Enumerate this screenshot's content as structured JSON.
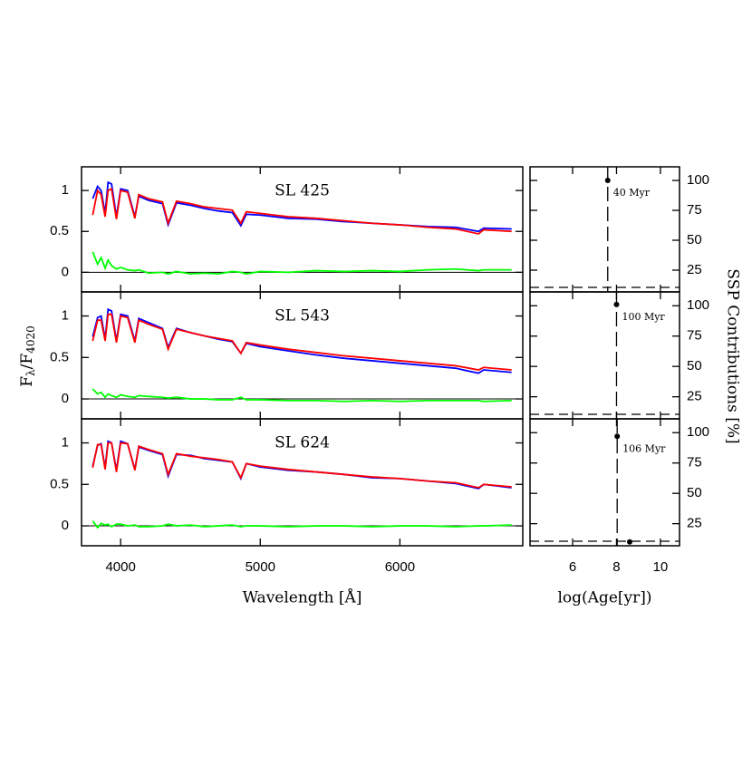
{
  "chart_data": [
    {
      "type": "line",
      "title": "SL 425",
      "xlim": [
        3720,
        6880
      ],
      "ylim": [
        -0.24,
        1.29
      ],
      "xticks": [
        4000,
        5000,
        6000
      ],
      "yticks": [
        0,
        0.5,
        1
      ],
      "x": [
        3800,
        3835,
        3860,
        3889,
        3910,
        3935,
        3970,
        4000,
        4050,
        4102,
        4130,
        4200,
        4300,
        4340,
        4400,
        4500,
        4600,
        4700,
        4800,
        4861,
        4900,
        5000,
        5200,
        5400,
        5600,
        5800,
        6000,
        6200,
        6400,
        6563,
        6600,
        6800
      ],
      "series": [
        {
          "color": "#0000ff",
          "values": [
            0.9,
            1.05,
            1.0,
            0.72,
            1.1,
            1.08,
            0.68,
            1.02,
            1.0,
            0.68,
            0.93,
            0.88,
            0.84,
            0.58,
            0.85,
            0.82,
            0.78,
            0.75,
            0.73,
            0.57,
            0.71,
            0.7,
            0.66,
            0.65,
            0.62,
            0.6,
            0.58,
            0.56,
            0.55,
            0.5,
            0.54,
            0.53
          ]
        },
        {
          "color": "#ff0000",
          "values": [
            0.7,
            1.0,
            0.95,
            0.68,
            1.0,
            1.02,
            0.65,
            1.0,
            0.98,
            0.66,
            0.95,
            0.9,
            0.86,
            0.6,
            0.87,
            0.84,
            0.8,
            0.78,
            0.76,
            0.6,
            0.74,
            0.72,
            0.68,
            0.66,
            0.63,
            0.6,
            0.58,
            0.55,
            0.53,
            0.47,
            0.52,
            0.5
          ]
        },
        {
          "color": "#00ff00",
          "values": [
            0.25,
            0.1,
            0.18,
            0.05,
            0.15,
            0.08,
            0.04,
            0.06,
            0.03,
            0.02,
            0.03,
            -0.01,
            0,
            -0.02,
            0.01,
            -0.02,
            -0.01,
            -0.02,
            0.01,
            0,
            -0.02,
            0.01,
            0,
            0.02,
            0.01,
            0.02,
            0.01,
            0.03,
            0.04,
            0.02,
            0.03,
            0.03
          ]
        }
      ]
    },
    {
      "type": "line",
      "title": "SL 543",
      "xlim": [
        3720,
        6880
      ],
      "ylim": [
        -0.24,
        1.29
      ],
      "xticks": [
        4000,
        5000,
        6000
      ],
      "yticks": [
        0,
        0.5,
        1
      ],
      "ylabel": [
        "F",
        "λ",
        "/F",
        "4020"
      ],
      "x": [
        3800,
        3835,
        3860,
        3889,
        3910,
        3935,
        3970,
        4000,
        4050,
        4102,
        4130,
        4200,
        4300,
        4340,
        4400,
        4500,
        4600,
        4700,
        4800,
        4861,
        4900,
        5000,
        5200,
        5400,
        5600,
        5800,
        6000,
        6200,
        6400,
        6563,
        6600,
        6800
      ],
      "series": [
        {
          "color": "#0000ff",
          "values": [
            0.75,
            0.98,
            1.0,
            0.72,
            1.08,
            1.06,
            0.7,
            1.02,
            1.0,
            0.7,
            0.97,
            0.92,
            0.85,
            0.62,
            0.85,
            0.8,
            0.76,
            0.72,
            0.69,
            0.55,
            0.67,
            0.63,
            0.58,
            0.53,
            0.49,
            0.46,
            0.43,
            0.4,
            0.37,
            0.31,
            0.35,
            0.32
          ]
        },
        {
          "color": "#ff0000",
          "values": [
            0.7,
            0.95,
            0.95,
            0.7,
            1.02,
            1.02,
            0.68,
            1.0,
            0.98,
            0.68,
            0.95,
            0.9,
            0.84,
            0.6,
            0.84,
            0.8,
            0.76,
            0.73,
            0.7,
            0.55,
            0.68,
            0.65,
            0.6,
            0.56,
            0.52,
            0.49,
            0.46,
            0.43,
            0.4,
            0.35,
            0.38,
            0.35
          ]
        },
        {
          "color": "#00ff00",
          "values": [
            0.12,
            0.06,
            0.08,
            0.02,
            0.06,
            0.04,
            0.02,
            0.05,
            0.03,
            0.02,
            0.04,
            0.03,
            0.02,
            0.01,
            0.02,
            0,
            0,
            -0.01,
            -0.01,
            0.02,
            -0.01,
            -0.01,
            -0.02,
            -0.02,
            -0.03,
            -0.02,
            -0.03,
            -0.02,
            -0.02,
            -0.02,
            -0.03,
            -0.02
          ]
        }
      ]
    },
    {
      "type": "line",
      "title": "SL 624",
      "xlim": [
        3720,
        6880
      ],
      "ylim": [
        -0.24,
        1.29
      ],
      "xticks": [
        4000,
        5000,
        6000
      ],
      "yticks": [
        0,
        0.5,
        1
      ],
      "xlabel": "Wavelength [Å]",
      "x": [
        3800,
        3835,
        3860,
        3889,
        3910,
        3935,
        3970,
        4000,
        4050,
        4102,
        4130,
        4200,
        4300,
        4340,
        4400,
        4500,
        4600,
        4700,
        4800,
        4861,
        4900,
        5000,
        5200,
        5400,
        5600,
        5800,
        6000,
        6200,
        6400,
        6563,
        6600,
        6800
      ],
      "series": [
        {
          "color": "#0000ff",
          "values": [
            0.72,
            0.97,
            0.99,
            0.7,
            1.02,
            1.0,
            0.67,
            1.02,
            0.99,
            0.68,
            0.95,
            0.91,
            0.86,
            0.6,
            0.86,
            0.85,
            0.81,
            0.79,
            0.77,
            0.57,
            0.75,
            0.71,
            0.67,
            0.65,
            0.62,
            0.58,
            0.57,
            0.54,
            0.51,
            0.45,
            0.5,
            0.46
          ]
        },
        {
          "color": "#ff0000",
          "values": [
            0.7,
            0.98,
            0.98,
            0.68,
            1.0,
            1.0,
            0.65,
            1.0,
            0.99,
            0.67,
            0.96,
            0.92,
            0.87,
            0.62,
            0.87,
            0.84,
            0.82,
            0.8,
            0.77,
            0.58,
            0.75,
            0.72,
            0.68,
            0.65,
            0.62,
            0.59,
            0.57,
            0.54,
            0.52,
            0.46,
            0.5,
            0.47
          ]
        },
        {
          "color": "#00ff00",
          "values": [
            0.06,
            -0.02,
            0.03,
            0.01,
            0.02,
            -0.01,
            0.02,
            0.02,
            0,
            0.01,
            -0.01,
            -0.01,
            0,
            0.02,
            0,
            0.01,
            -0.01,
            0,
            0.01,
            -0.01,
            0,
            0,
            -0.01,
            0,
            0,
            -0.01,
            0,
            0,
            -0.01,
            0,
            0,
            0.01
          ]
        }
      ]
    },
    {
      "type": "scatter",
      "xlim": [
        4.06,
        10.87
      ],
      "ylim": [
        6.8,
        111.4
      ],
      "xticks": [
        6,
        8,
        10
      ],
      "yticks": [
        25,
        50,
        75,
        100
      ],
      "x": [
        7.6
      ],
      "values": [
        100
      ],
      "annotation": "40 Myr",
      "color": "#000000"
    },
    {
      "type": "scatter",
      "xlim": [
        4.06,
        10.87
      ],
      "ylim": [
        6.8,
        111.4
      ],
      "xticks": [
        6,
        8,
        10
      ],
      "yticks": [
        25,
        50,
        75,
        100
      ],
      "ylabel": "SSP Contributions [%]",
      "x": [
        8.0
      ],
      "values": [
        101
      ],
      "annotation": "100 Myr",
      "color": "#000000"
    },
    {
      "type": "scatter",
      "xlim": [
        4.06,
        10.87
      ],
      "ylim": [
        6.8,
        111.4
      ],
      "xticks": [
        6,
        8,
        10
      ],
      "yticks": [
        25,
        50,
        75,
        100
      ],
      "xlabel": "log(Age[yr])",
      "x": [
        8.03,
        8.6
      ],
      "values": [
        97,
        10
      ],
      "annotation": "106 Myr",
      "color": "#000000"
    }
  ]
}
